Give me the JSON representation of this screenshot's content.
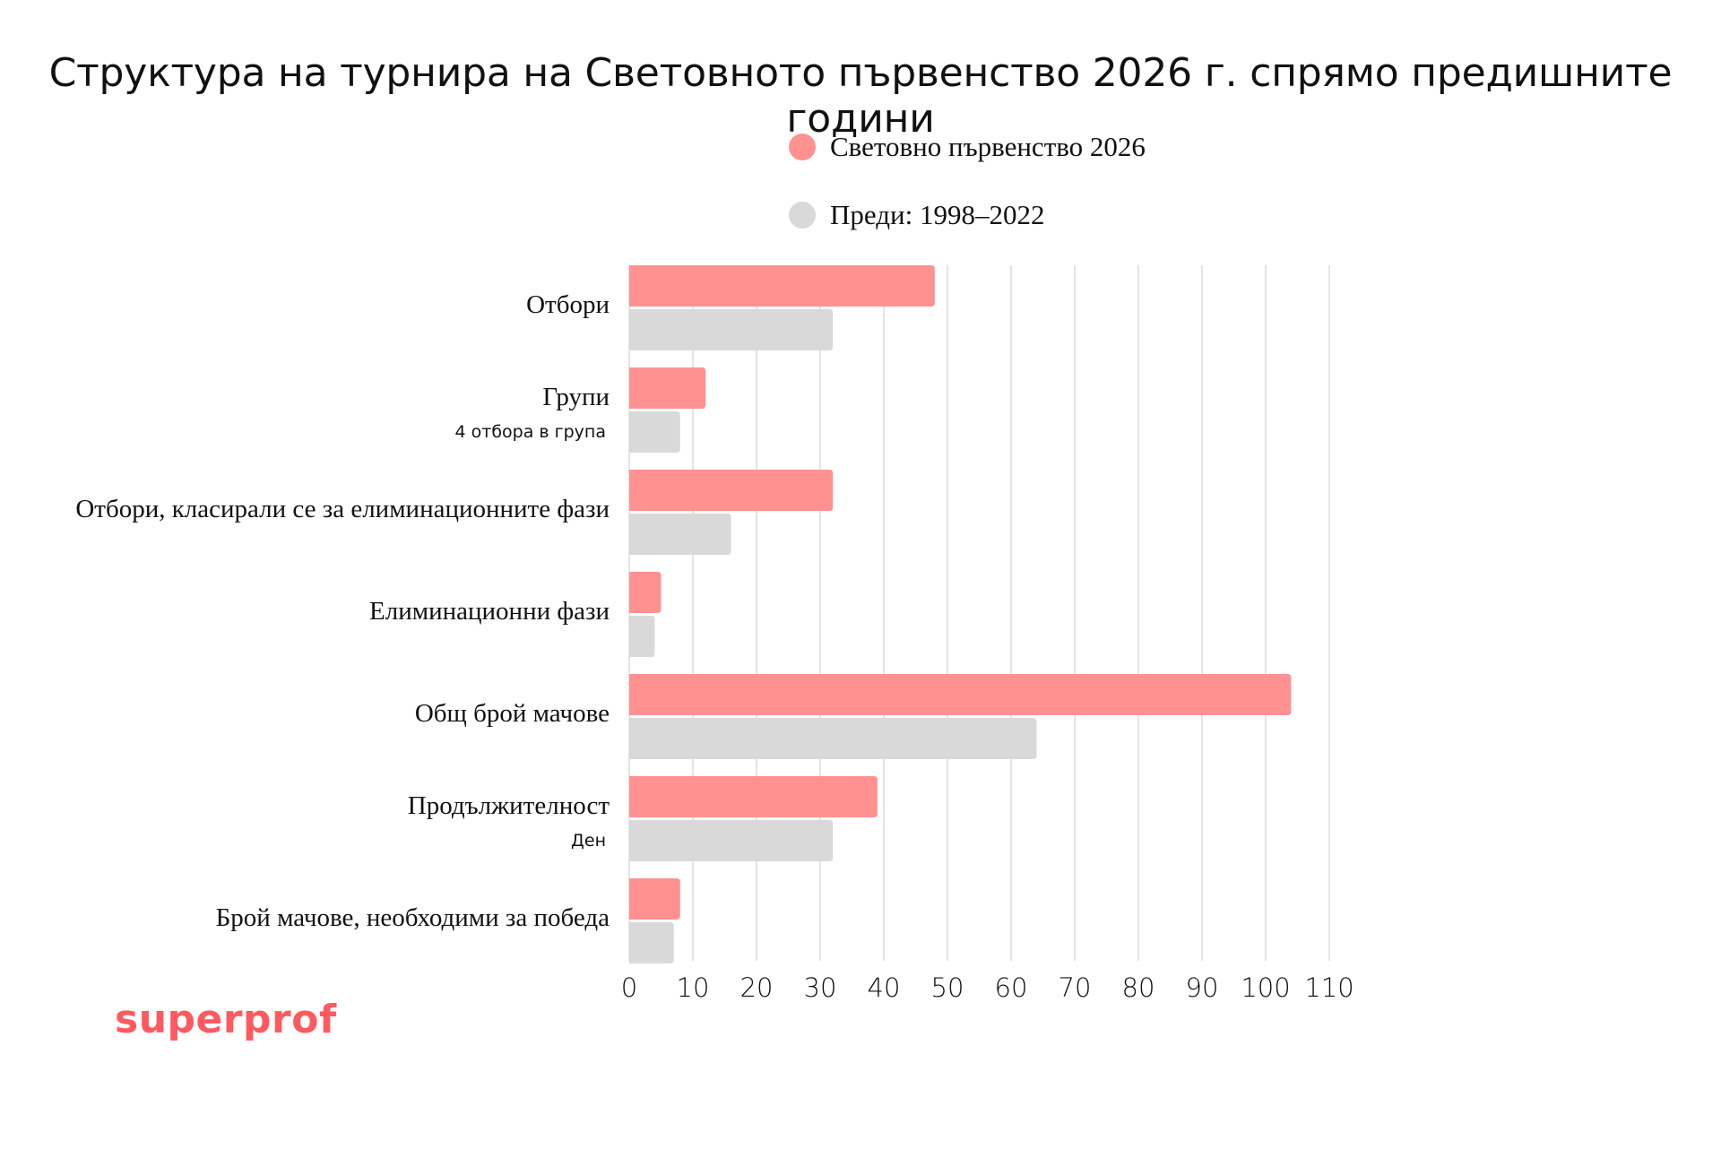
{
  "chart_data": {
    "type": "bar",
    "orientation": "horizontal",
    "title": "Структура на турнира на Световното първенство 2026 г. спрямо предишните години",
    "categories": [
      "Отбори",
      "Групи",
      "Отбори, класирали се за елиминационните фази",
      "Елиминационни фази",
      "Общ брой мачове",
      "Продължителност",
      "Брой мачове, необходими за победа"
    ],
    "category_sublabels": [
      "",
      "4 отбора в група",
      "",
      "",
      "",
      "Ден",
      ""
    ],
    "series": [
      {
        "name": "Световно първенство 2026",
        "color": "#ff9191",
        "values": [
          48,
          12,
          32,
          5,
          104,
          39,
          8
        ]
      },
      {
        "name": "Преди: 1998–2022",
        "color": "#d9d9d9",
        "values": [
          32,
          8,
          16,
          4,
          64,
          32,
          7
        ]
      }
    ],
    "xlim": [
      0,
      110
    ],
    "xticks": [
      "0",
      "10",
      "20",
      "30",
      "40",
      "50",
      "60",
      "70",
      "80",
      "90",
      "100",
      "110"
    ],
    "grid": true,
    "legend_position": "top"
  },
  "brand": {
    "name": "superprof",
    "color": "#ff5a5f"
  },
  "colors": {
    "gridline": "#dcdcdc",
    "text": "#111111"
  }
}
